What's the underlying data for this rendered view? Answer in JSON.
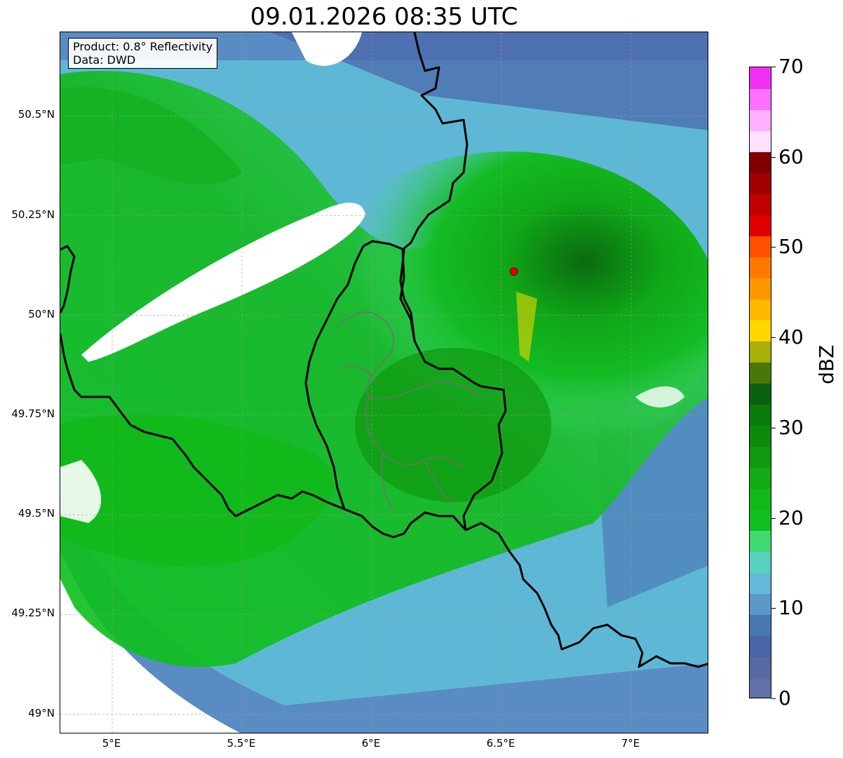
{
  "title": "09.01.2026 08:35 UTC",
  "info": {
    "product": "Product: 0.8° Reflectivity",
    "data": "Data: DWD"
  },
  "map": {
    "lon_range": [
      4.8,
      7.3
    ],
    "lat_range": [
      48.95,
      50.71
    ],
    "lat_ticks": [
      "50.5°N",
      "50.25°N",
      "50°N",
      "49.75°N",
      "49.5°N",
      "49.25°N",
      "49°N"
    ],
    "lat_values": [
      50.5,
      50.25,
      50.0,
      49.75,
      49.5,
      49.25,
      49.0
    ],
    "lon_ticks": [
      "5°E",
      "5.5°E",
      "6°E",
      "6.5°E",
      "7°E"
    ],
    "lon_values": [
      5.0,
      5.5,
      6.0,
      6.5,
      7.0
    ],
    "radar_site": {
      "lon": 6.548,
      "lat": 50.11
    },
    "grid": true
  },
  "colorbar": {
    "unit": "dBZ",
    "min": 0,
    "max": 70,
    "tick_labels": [
      "0",
      "10",
      "20",
      "30",
      "40",
      "50",
      "60",
      "70"
    ],
    "tick_values": [
      0,
      10,
      20,
      30,
      40,
      50,
      60,
      70
    ],
    "colors": [
      "#6070a8",
      "#5868a0",
      "#4a64a8",
      "#4878b0",
      "#5a98c8",
      "#66b8d8",
      "#58d0c0",
      "#40d870",
      "#10c020",
      "#10b818",
      "#14aa14",
      "#109810",
      "#0c8a0c",
      "#0a7a0a",
      "#0a6010",
      "#4a7808",
      "#a8b008",
      "#ffd800",
      "#ffb800",
      "#ff9800",
      "#ff7800",
      "#ff5000",
      "#e00000",
      "#c00000",
      "#a00000",
      "#800000",
      "#ffe0ff",
      "#ffb0ff",
      "#ff70ff",
      "#f030f0"
    ]
  }
}
